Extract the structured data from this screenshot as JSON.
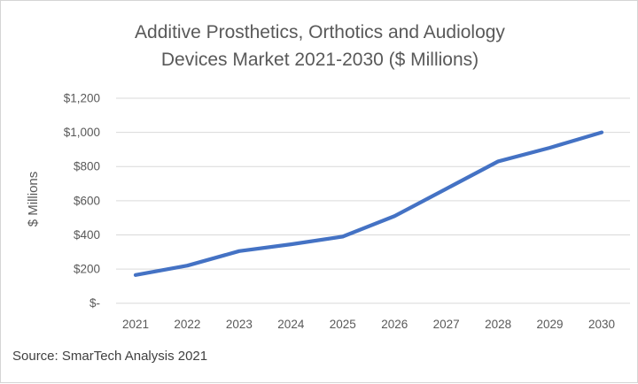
{
  "title_lines": [
    "Additive Prosthetics, Orthotics and Audiology",
    "Devices Market 2021-2030 ($ Millions)"
  ],
  "source_note": "Source: SmarTech Analysis 2021",
  "colors": {
    "line": "#4472C4",
    "gridline": "#D9D9D9",
    "axis_text": "#595959",
    "title_text": "#595959",
    "source_text": "#404040",
    "frame_border": "#D5D5D5",
    "background": "#FFFFFF"
  },
  "chart_data": {
    "type": "line",
    "title": "Additive Prosthetics, Orthotics and Audiology Devices Market 2021-2030 ($ Millions)",
    "categories": [
      "2021",
      "2022",
      "2023",
      "2024",
      "2025",
      "2026",
      "2027",
      "2028",
      "2029",
      "2030"
    ],
    "values": [
      165,
      220,
      305,
      345,
      390,
      510,
      670,
      830,
      910,
      1000
    ],
    "xlabel": "",
    "ylabel": "$ Millions",
    "ylim": [
      0,
      1200
    ],
    "y_tick_step": 200,
    "y_tick_labels": [
      "$-",
      "$200",
      "$400",
      "$600",
      "$800",
      "$1,000",
      "$1,200"
    ],
    "grid": true,
    "legend": "none",
    "line_color": "#4472C4",
    "gridline_color": "#D9D9D9"
  }
}
